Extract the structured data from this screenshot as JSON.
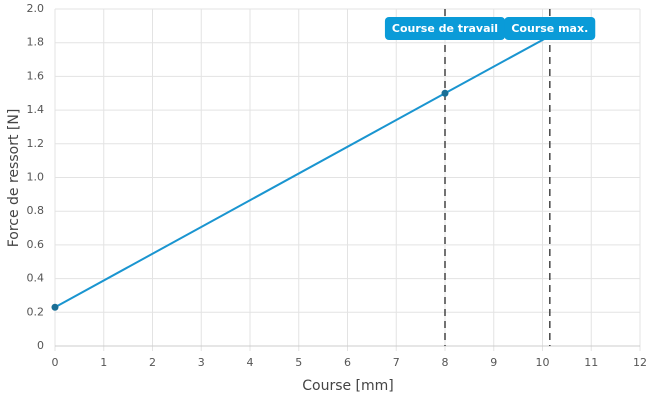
{
  "chart_data": {
    "type": "line",
    "x_label": "Course [mm]",
    "y_label": "Force de ressort [N]",
    "x": [
      0,
      8,
      10.15
    ],
    "series": [
      {
        "color": "#1a95d0",
        "values": [
          0.23,
          1.5,
          1.84
        ]
      }
    ],
    "xlim": [
      0,
      12
    ],
    "xticks": [
      0,
      1,
      2,
      3,
      4,
      5,
      6,
      7,
      8,
      9,
      10,
      11,
      12
    ],
    "ylim": [
      0,
      2
    ],
    "yticks": [
      0,
      0.2,
      0.4,
      0.6,
      0.8,
      {
        "value": 1,
        "label": "1.0"
      },
      1.2,
      1.4,
      1.6,
      1.8,
      {
        "value": 2,
        "label": "2.0"
      }
    ],
    "grid": true,
    "annotations": [
      {
        "label": "Course de travail",
        "x": 8
      },
      {
        "label": "Course max.",
        "x": 10.15
      }
    ]
  }
}
